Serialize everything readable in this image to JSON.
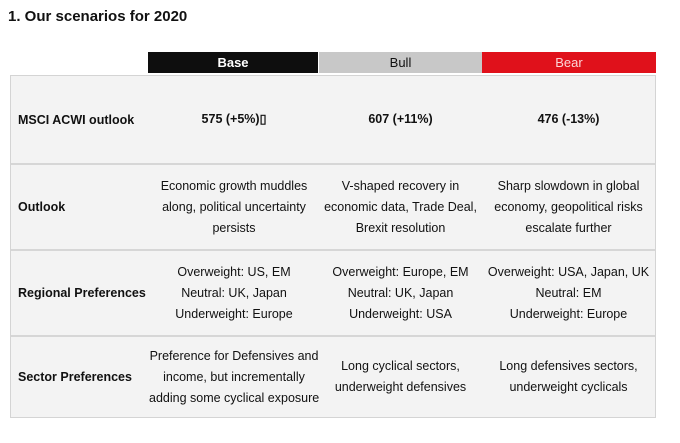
{
  "title": "1. Our scenarios for 2020",
  "headers": {
    "base": "Base",
    "bull": "Bull",
    "bear": "Bear"
  },
  "colors": {
    "base_header": "#0e0e0e",
    "bull_header": "#c8c8c8",
    "bear_header": "#e0111b"
  },
  "rows": [
    {
      "label": "MSCI ACWI outlook",
      "base": [
        "575  (+5%)▯"
      ],
      "bull": [
        "607  (+11%)"
      ],
      "bear": [
        "476  (-13%)"
      ]
    },
    {
      "label": "Outlook",
      "base": [
        "Economic growth muddles",
        "along, political uncertainty",
        "persists"
      ],
      "bull": [
        "V-shaped recovery in",
        "economic data, Trade Deal,",
        "Brexit resolution"
      ],
      "bear": [
        "Sharp slowdown in global",
        "economy, geopolitical risks",
        "escalate further"
      ]
    },
    {
      "label": "Regional Preferences",
      "base": [
        "Overweight: US, EM",
        "Neutral: UK, Japan",
        "Underweight: Europe"
      ],
      "bull": [
        "Overweight: Europe, EM",
        "Neutral: UK,  Japan",
        "Underweight: USA"
      ],
      "bear": [
        "Overweight: USA, Japan, UK",
        "Neutral: EM",
        "Underweight: Europe"
      ]
    },
    {
      "label": "Sector Preferences",
      "base": [
        "Preference for Defensives and",
        "income, but incrementally",
        "adding some cyclical exposure"
      ],
      "bull": [
        "Long cyclical sectors,",
        "underweight defensives"
      ],
      "bear": [
        "Long defensives sectors,",
        "underweight cyclicals"
      ]
    }
  ]
}
